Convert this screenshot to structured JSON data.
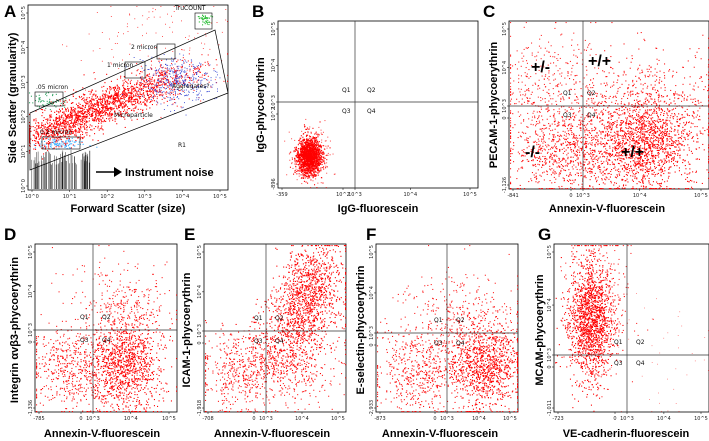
{
  "chart_data": [
    {
      "panel": "A",
      "type": "scatter",
      "xlabel": "Forward Scatter (size)",
      "ylabel": "Side Scatter (granularity)",
      "x_ticks": [
        "10^0",
        "10^1",
        "10^2",
        "10^3",
        "10^4",
        "10^5"
      ],
      "y_ticks": [
        "10^0",
        "10^1",
        "10^2",
        "10^3",
        "10^4",
        "10^5"
      ],
      "gates": [
        "TruCOUNT",
        "2 micron",
        "1 micron",
        ".05 micron",
        "0.2 micron",
        "Aggregates?",
        "Microparticle",
        "R1"
      ],
      "annotation": "Instrument noise"
    },
    {
      "panel": "B",
      "type": "scatter",
      "xlabel": "IgG-fluorescein",
      "ylabel": "IgG-phycoerythrin",
      "x_ticks": [
        "-359",
        "10^2",
        "10^3",
        "10^4",
        "10^5"
      ],
      "y_ticks": [
        "-896",
        "10^2",
        "10^3",
        "10^4",
        "10^5"
      ],
      "quadrants": [
        "Q1",
        "Q2",
        "Q3",
        "Q4"
      ]
    },
    {
      "panel": "C",
      "type": "scatter",
      "xlabel": "Annexin-V-fluorescein",
      "ylabel": "PECAM-1-phycoerythrin",
      "x_ticks": [
        "-841",
        "0",
        "10^3",
        "10^4",
        "10^5"
      ],
      "y_ticks": [
        "-1,126",
        "0",
        "10^3",
        "10^4",
        "10^5"
      ],
      "quadrants": [
        "Q1",
        "Q2",
        "Q3",
        "Q4"
      ],
      "population_labels": [
        "+/-",
        "+/+",
        "-/-",
        "+/+"
      ]
    },
    {
      "panel": "D",
      "type": "scatter",
      "xlabel": "Annexin-V-fluorescein",
      "ylabel": "Integrin αvβ3-phycoerythrin",
      "x_ticks": [
        "-785",
        "0",
        "10^3",
        "10^4",
        "10^5"
      ],
      "y_ticks": [
        "-1,336",
        "0",
        "10^3",
        "10^4",
        "10^5"
      ],
      "quadrants": [
        "Q1",
        "Q2",
        "Q3",
        "Q4"
      ]
    },
    {
      "panel": "E",
      "type": "scatter",
      "xlabel": "Annexin-V-fluorescein",
      "ylabel": "ICAM-1-phycoerythrin",
      "x_ticks": [
        "-708",
        "0",
        "10^3",
        "10^4",
        "10^5"
      ],
      "y_ticks": [
        "-1,918",
        "0",
        "10^3",
        "10^4",
        "10^5"
      ],
      "quadrants": [
        "Q1",
        "Q2",
        "Q3",
        "Q4"
      ]
    },
    {
      "panel": "F",
      "type": "scatter",
      "xlabel": "Annexin-V-fluorescein",
      "ylabel": "E-selectin-phycoerythrin",
      "x_ticks": [
        "-873",
        "0",
        "10^3",
        "10^4",
        "10^5"
      ],
      "y_ticks": [
        "-2,933",
        "0",
        "10^3",
        "10^4",
        "10^5"
      ],
      "quadrants": [
        "Q1",
        "Q2",
        "Q3",
        "Q4"
      ]
    },
    {
      "panel": "G",
      "type": "scatter",
      "xlabel": "VE-cadherin-fluorescein",
      "ylabel": "MCAM-phycoerythrin",
      "x_ticks": [
        "-723",
        "0",
        "10^3",
        "10^4",
        "10^5"
      ],
      "y_ticks": [
        "-1,011",
        "0",
        "10^3",
        "10^4",
        "10^5"
      ],
      "quadrants": [
        "Q1",
        "Q2",
        "Q3",
        "Q4"
      ]
    }
  ],
  "style": {
    "point_color": "#ff0000",
    "aggregate_color": "#2a3ccf",
    "truecount_color": "#2fbf3a",
    "noise_color": "#000000"
  }
}
